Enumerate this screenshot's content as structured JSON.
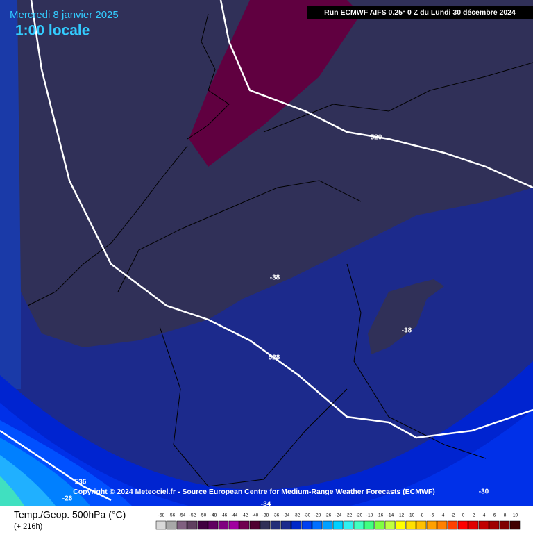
{
  "header": {
    "date": "Mercredi 8 janvier 2025",
    "time": "1:00 locale",
    "run": "Run ECMWF AIFS 0.25° 0 Z du Lundi 30 décembre 2024"
  },
  "contour_labels": [
    "520",
    "528",
    "536",
    "-38",
    "-38",
    "-30",
    "-26",
    "-34"
  ],
  "copyright": "Copyright © 2024 Meteociel.fr - Source European Centre for Medium-Range Weather Forecasts (ECMWF)",
  "footer": {
    "parameter": "Temp./Geop. 500hPa (°C)",
    "lead": "(+ 216h)"
  },
  "scale": {
    "values": [
      -58,
      -56,
      -54,
      -52,
      -50,
      -48,
      -46,
      -44,
      -42,
      -40,
      -38,
      -36,
      -34,
      -32,
      -30,
      -28,
      -26,
      -24,
      -22,
      -20,
      -18,
      -16,
      -14,
      -12,
      -10,
      -8,
      -6,
      -4,
      -2,
      0,
      2,
      4,
      6,
      8,
      10
    ],
    "colors": [
      "#d8d8d8",
      "#a8a8a8",
      "#806080",
      "#604060",
      "#400040",
      "#600060",
      "#800080",
      "#a000a0",
      "#700050",
      "#500030",
      "#303058",
      "#222e78",
      "#1c2a8c",
      "#0028c8",
      "#0040f0",
      "#0070ff",
      "#00a0ff",
      "#00d0ff",
      "#30f0f0",
      "#40ffc0",
      "#40ff80",
      "#80ff40",
      "#c0ff40",
      "#ffff00",
      "#ffe000",
      "#ffc000",
      "#ffa000",
      "#ff8000",
      "#ff4000",
      "#ff0000",
      "#e00000",
      "#c00000",
      "#a00000",
      "#800000",
      "#400000"
    ]
  }
}
